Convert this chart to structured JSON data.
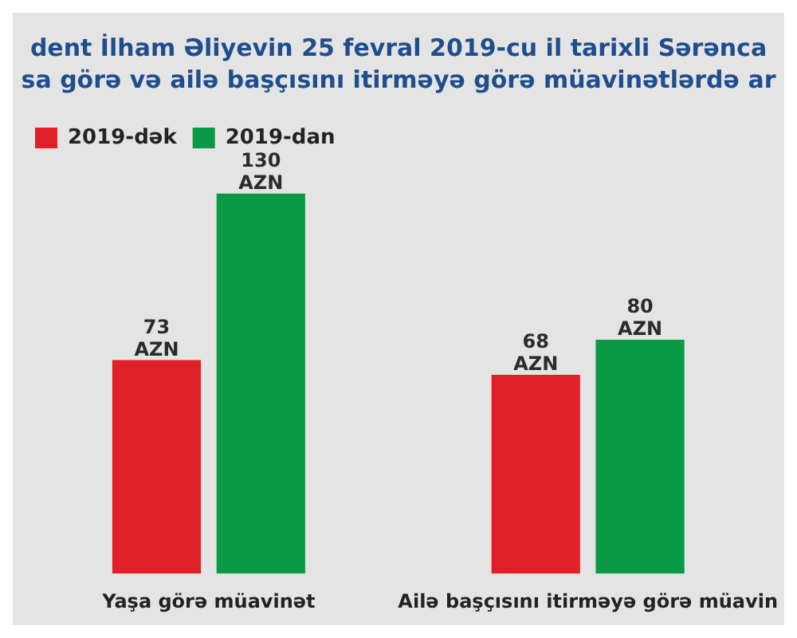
{
  "chart_data": {
    "type": "bar",
    "title": "dent İlham Əliyevin 25 fevral 2019-cu il tarixli Sərənca",
    "subtitle": "sa görə və ailə başçısını itirməyə görə müavinətlərdə ar",
    "categories": [
      "Yaşa görə müavinət",
      "Ailə başçısını itirməyə görə müavin"
    ],
    "series": [
      {
        "name": "2019-dək",
        "color": "#e02027",
        "values": [
          73,
          68
        ],
        "value_labels": [
          "73 AZN",
          "68 AZN"
        ]
      },
      {
        "name": "2019-dan",
        "color": "#0a9a45",
        "values": [
          130,
          80
        ],
        "value_labels": [
          "130 AZN",
          "80 AZN"
        ]
      }
    ],
    "legend": "top left",
    "grid": false,
    "tick_labels": "x"
  }
}
